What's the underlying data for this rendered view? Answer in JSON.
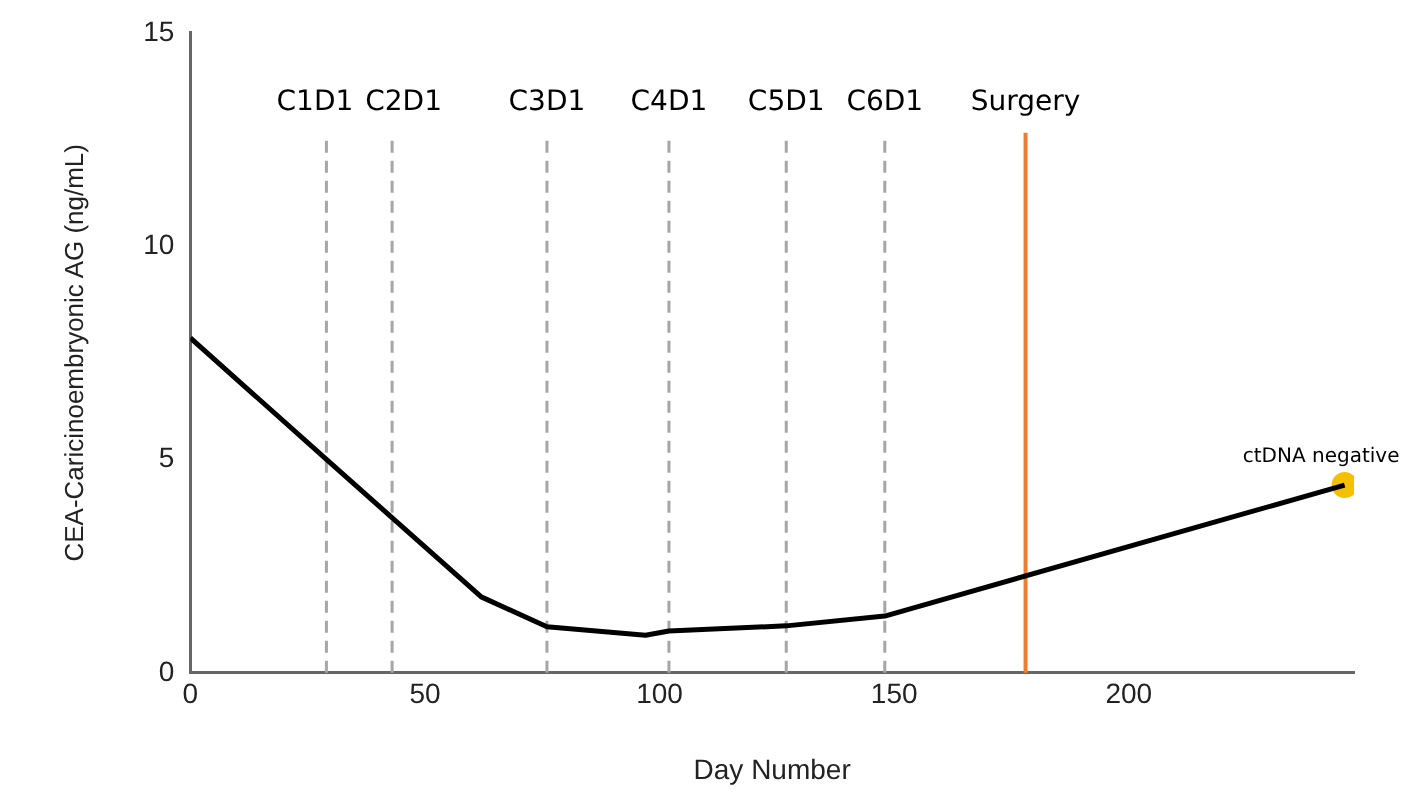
{
  "chart_data": {
    "type": "line",
    "xlabel": "Day Number",
    "ylabel": "CEA-Caricinoembryonic AG (ng/mL)",
    "x": [
      0,
      29,
      62,
      76,
      97,
      102,
      127,
      148,
      246
    ],
    "series": [
      {
        "color": "#000000",
        "values": [
          7.85,
          5.0,
          1.78,
          1.08,
          0.88,
          0.98,
          1.1,
          1.33,
          4.4
        ],
        "marker": "none"
      },
      {
        "type": "scatter",
        "color": "#f5c000",
        "x": [
          246
        ],
        "values": [
          4.4
        ],
        "marker": "circle"
      }
    ],
    "xlim": [
      0,
      248
    ],
    "xticks": [
      0,
      50,
      100,
      150,
      200
    ],
    "ylim": [
      0,
      15
    ],
    "yticks": [
      0,
      5,
      10,
      15
    ],
    "grid": false,
    "legend": false,
    "ref_lines": [
      {
        "axis": "x",
        "value": 29,
        "label": "C1D1",
        "color": "#a6a6a6",
        "line_style": "dashed"
      },
      {
        "axis": "x",
        "value": 43,
        "label": "C2D1",
        "color": "#a6a6a6",
        "line_style": "dashed"
      },
      {
        "axis": "x",
        "value": 76,
        "label": "C3D1",
        "color": "#a6a6a6",
        "line_style": "dashed"
      },
      {
        "axis": "x",
        "value": 102,
        "label": "C4D1",
        "color": "#a6a6a6",
        "line_style": "dashed"
      },
      {
        "axis": "x",
        "value": 127,
        "label": "C5D1",
        "color": "#a6a6a6",
        "line_style": "dashed"
      },
      {
        "axis": "x",
        "value": 148,
        "label": "C6D1",
        "color": "#a6a6a6",
        "line_style": "dashed"
      },
      {
        "axis": "x",
        "value": 178,
        "label": "Surgery",
        "color": "#ed7d31",
        "line_style": "solid"
      }
    ],
    "annotations": [
      {
        "text": "ctDNA negative",
        "x": 246,
        "y": 4.4
      }
    ]
  }
}
